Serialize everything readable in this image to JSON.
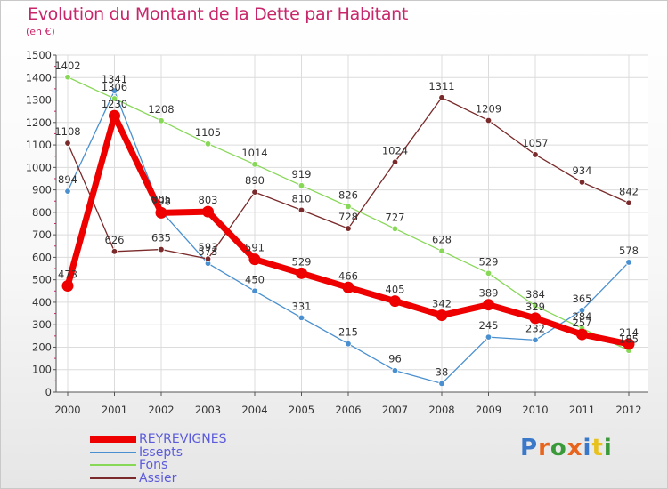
{
  "header": {
    "title": "Evolution du Montant de la Dette par Habitant",
    "unit": "(en €)"
  },
  "logo": {
    "text": "Proxiti",
    "colors": [
      "#3a78c9",
      "#e8641c",
      "#3a9a3a",
      "#e8641c",
      "#3a78c9",
      "#e8c21c",
      "#3a9a3a"
    ]
  },
  "chart_data": {
    "type": "line",
    "title": "Evolution du Montant de la Dette par Habitant",
    "ylabel": "(en €)",
    "xlabel": "",
    "ylim": [
      0,
      1500
    ],
    "yticks": [
      0,
      100,
      200,
      300,
      400,
      500,
      600,
      700,
      800,
      900,
      1000,
      1100,
      1200,
      1300,
      1400,
      1500
    ],
    "grid": true,
    "legend_position": "bottom-left",
    "categories": [
      "2000",
      "2001",
      "2002",
      "2003",
      "2004",
      "2005",
      "2006",
      "2007",
      "2008",
      "2009",
      "2010",
      "2011",
      "2012"
    ],
    "series": [
      {
        "name": "REYREVIGNES",
        "color": "#ee0000",
        "thick": true,
        "values": [
          473,
          1230,
          798,
          803,
          591,
          529,
          466,
          405,
          342,
          389,
          329,
          257,
          214
        ]
      },
      {
        "name": "Issepts",
        "color": "#4a90d0",
        "thick": false,
        "values": [
          894,
          1341,
          805,
          573,
          450,
          331,
          215,
          96,
          38,
          245,
          232,
          365,
          578
        ]
      },
      {
        "name": "Fons",
        "color": "#88d858",
        "thick": false,
        "values": [
          1402,
          1306,
          1208,
          1105,
          1014,
          919,
          826,
          727,
          628,
          529,
          384,
          284,
          185
        ]
      },
      {
        "name": "Assier",
        "color": "#7a2a2a",
        "thick": false,
        "values": [
          1108,
          626,
          635,
          593,
          890,
          810,
          728,
          1024,
          1311,
          1209,
          1057,
          934,
          842
        ]
      }
    ]
  }
}
